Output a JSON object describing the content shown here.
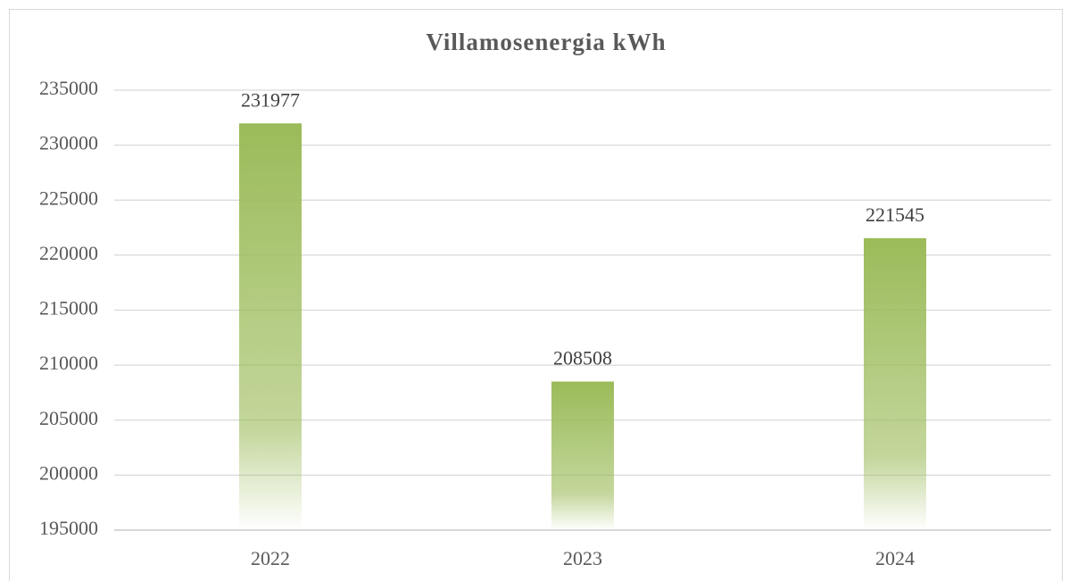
{
  "chart_data": {
    "type": "bar",
    "title": "Villamosenergia kWh",
    "categories": [
      "2022",
      "2023",
      "2024"
    ],
    "values": [
      231977,
      208508,
      221545
    ],
    "color": "#9bbb59",
    "ylim": [
      195000,
      235000
    ],
    "yticks": [
      195000,
      200000,
      205000,
      210000,
      215000,
      220000,
      225000,
      230000,
      235000
    ],
    "grid": true
  }
}
